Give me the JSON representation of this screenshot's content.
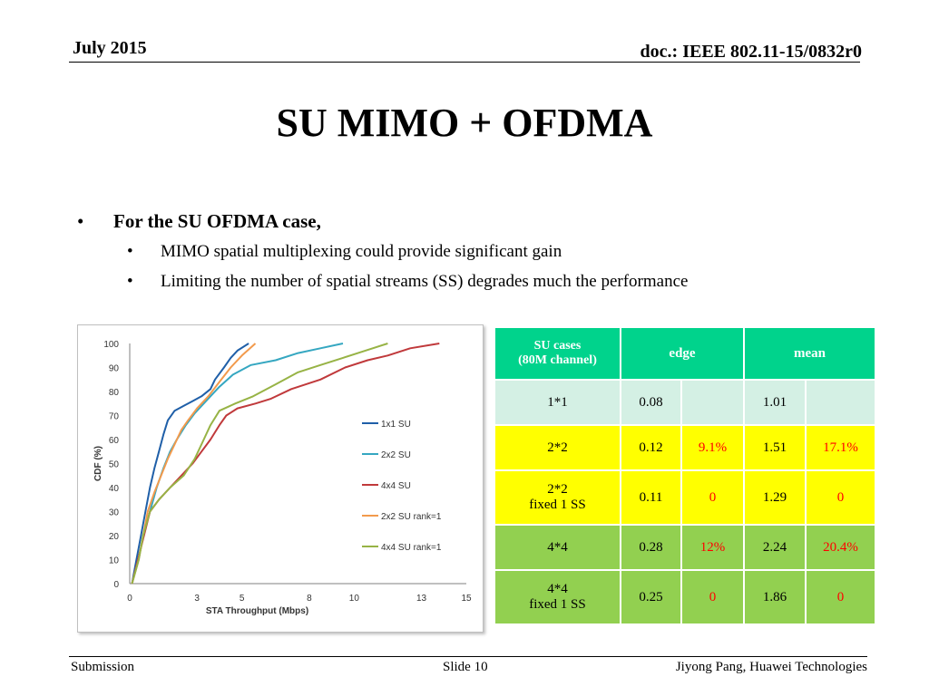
{
  "header": {
    "date": "July 2015",
    "doc": "doc.: IEEE 802.11-15/0832r0"
  },
  "title": "SU MIMO + OFDMA",
  "bullets": {
    "main": "For the SU OFDMA case,",
    "sub": [
      "MIMO spatial multiplexing could provide significant gain",
      "Limiting the number of spatial streams (SS) degrades much the performance"
    ]
  },
  "chart_data": {
    "type": "line",
    "xlabel": "STA Throughput (Mbps)",
    "ylabel": "CDF (%)",
    "xlim": [
      0,
      15
    ],
    "ylim": [
      0,
      100
    ],
    "xticks": [
      0,
      3,
      5,
      8,
      10,
      13,
      15
    ],
    "yticks": [
      0,
      10,
      20,
      30,
      40,
      50,
      60,
      70,
      80,
      90,
      100
    ],
    "grid": false,
    "legend_position": "right",
    "series": [
      {
        "name": "1x1 SU",
        "color": "#1f5fa8",
        "points": [
          [
            0.1,
            0
          ],
          [
            0.3,
            10
          ],
          [
            0.5,
            20
          ],
          [
            0.7,
            30
          ],
          [
            0.9,
            40
          ],
          [
            1.1,
            48
          ],
          [
            1.3,
            55
          ],
          [
            1.5,
            62
          ],
          [
            1.7,
            68
          ],
          [
            2.0,
            72
          ],
          [
            2.4,
            74
          ],
          [
            2.8,
            76
          ],
          [
            3.2,
            78
          ],
          [
            3.6,
            81
          ],
          [
            3.8,
            85
          ],
          [
            4.2,
            90
          ],
          [
            4.5,
            94
          ],
          [
            4.8,
            97
          ],
          [
            5.3,
            100
          ]
        ]
      },
      {
        "name": "2x2 SU",
        "color": "#35a7c1",
        "points": [
          [
            0.1,
            0
          ],
          [
            0.4,
            10
          ],
          [
            0.6,
            20
          ],
          [
            0.9,
            30
          ],
          [
            1.2,
            40
          ],
          [
            1.5,
            48
          ],
          [
            1.8,
            55
          ],
          [
            2.1,
            60
          ],
          [
            2.5,
            66
          ],
          [
            2.9,
            71
          ],
          [
            3.4,
            76
          ],
          [
            4.0,
            82
          ],
          [
            4.6,
            87
          ],
          [
            5.4,
            91
          ],
          [
            6.5,
            93
          ],
          [
            7.5,
            96
          ],
          [
            8.5,
            98
          ],
          [
            9.5,
            100
          ]
        ]
      },
      {
        "name": "4x4 SU",
        "color": "#c0393b",
        "points": [
          [
            0.1,
            0
          ],
          [
            0.5,
            15
          ],
          [
            0.9,
            30
          ],
          [
            1.3,
            35
          ],
          [
            1.8,
            40
          ],
          [
            2.3,
            45
          ],
          [
            2.8,
            50
          ],
          [
            3.2,
            55
          ],
          [
            3.6,
            60
          ],
          [
            4.0,
            66
          ],
          [
            4.3,
            70
          ],
          [
            4.8,
            73
          ],
          [
            5.6,
            75
          ],
          [
            6.3,
            77
          ],
          [
            7.2,
            81
          ],
          [
            8.5,
            85
          ],
          [
            9.6,
            90
          ],
          [
            10.6,
            93
          ],
          [
            11.5,
            95
          ],
          [
            12.5,
            98
          ],
          [
            13.8,
            100
          ]
        ]
      },
      {
        "name": "2x2 SU rank=1",
        "color": "#f29a4c",
        "points": [
          [
            0.1,
            0
          ],
          [
            0.4,
            10
          ],
          [
            0.6,
            20
          ],
          [
            0.8,
            30
          ],
          [
            1.1,
            38
          ],
          [
            1.4,
            45
          ],
          [
            1.7,
            52
          ],
          [
            2.0,
            58
          ],
          [
            2.3,
            64
          ],
          [
            2.6,
            68
          ],
          [
            3.0,
            73
          ],
          [
            3.5,
            78
          ],
          [
            4.0,
            84
          ],
          [
            4.5,
            90
          ],
          [
            5.0,
            95
          ],
          [
            5.6,
            100
          ]
        ]
      },
      {
        "name": "4x4 SU rank=1",
        "color": "#97b345",
        "points": [
          [
            0.1,
            0
          ],
          [
            0.4,
            10
          ],
          [
            0.6,
            20
          ],
          [
            0.9,
            30
          ],
          [
            1.3,
            35
          ],
          [
            1.8,
            40
          ],
          [
            2.4,
            45
          ],
          [
            2.9,
            52
          ],
          [
            3.3,
            60
          ],
          [
            3.6,
            66
          ],
          [
            4.0,
            72
          ],
          [
            4.7,
            75
          ],
          [
            5.5,
            78
          ],
          [
            6.5,
            83
          ],
          [
            7.5,
            88
          ],
          [
            8.5,
            91
          ],
          [
            9.5,
            94
          ],
          [
            10.5,
            97
          ],
          [
            11.5,
            100
          ]
        ]
      }
    ]
  },
  "table": {
    "head": {
      "case": "SU cases\n(80M channel)",
      "edge": "edge",
      "mean": "mean"
    },
    "rows": [
      {
        "case": "1*1",
        "edge": "0.08",
        "edge_gain": "",
        "mean": "1.01",
        "mean_gain": ""
      },
      {
        "case": "2*2",
        "edge": "0.12",
        "edge_gain": "9.1%",
        "mean": "1.51",
        "mean_gain": "17.1%"
      },
      {
        "case": "2*2\nfixed 1 SS",
        "edge": "0.11",
        "edge_gain": "0",
        "mean": "1.29",
        "mean_gain": "0"
      },
      {
        "case": "4*4",
        "edge": "0.28",
        "edge_gain": "12%",
        "mean": "2.24",
        "mean_gain": "20.4%"
      },
      {
        "case": "4*4\nfixed 1 SS",
        "edge": "0.25",
        "edge_gain": "0",
        "mean": "1.86",
        "mean_gain": "0"
      }
    ],
    "colors": {
      "header": "#00d38c",
      "base": "#d4f0e4",
      "yellow": "#ffff00",
      "green": "#92d050",
      "gain": "#ff0000"
    }
  },
  "footer": {
    "left": "Submission",
    "center": "Slide 10",
    "right": "Jiyong Pang, Huawei Technologies"
  }
}
